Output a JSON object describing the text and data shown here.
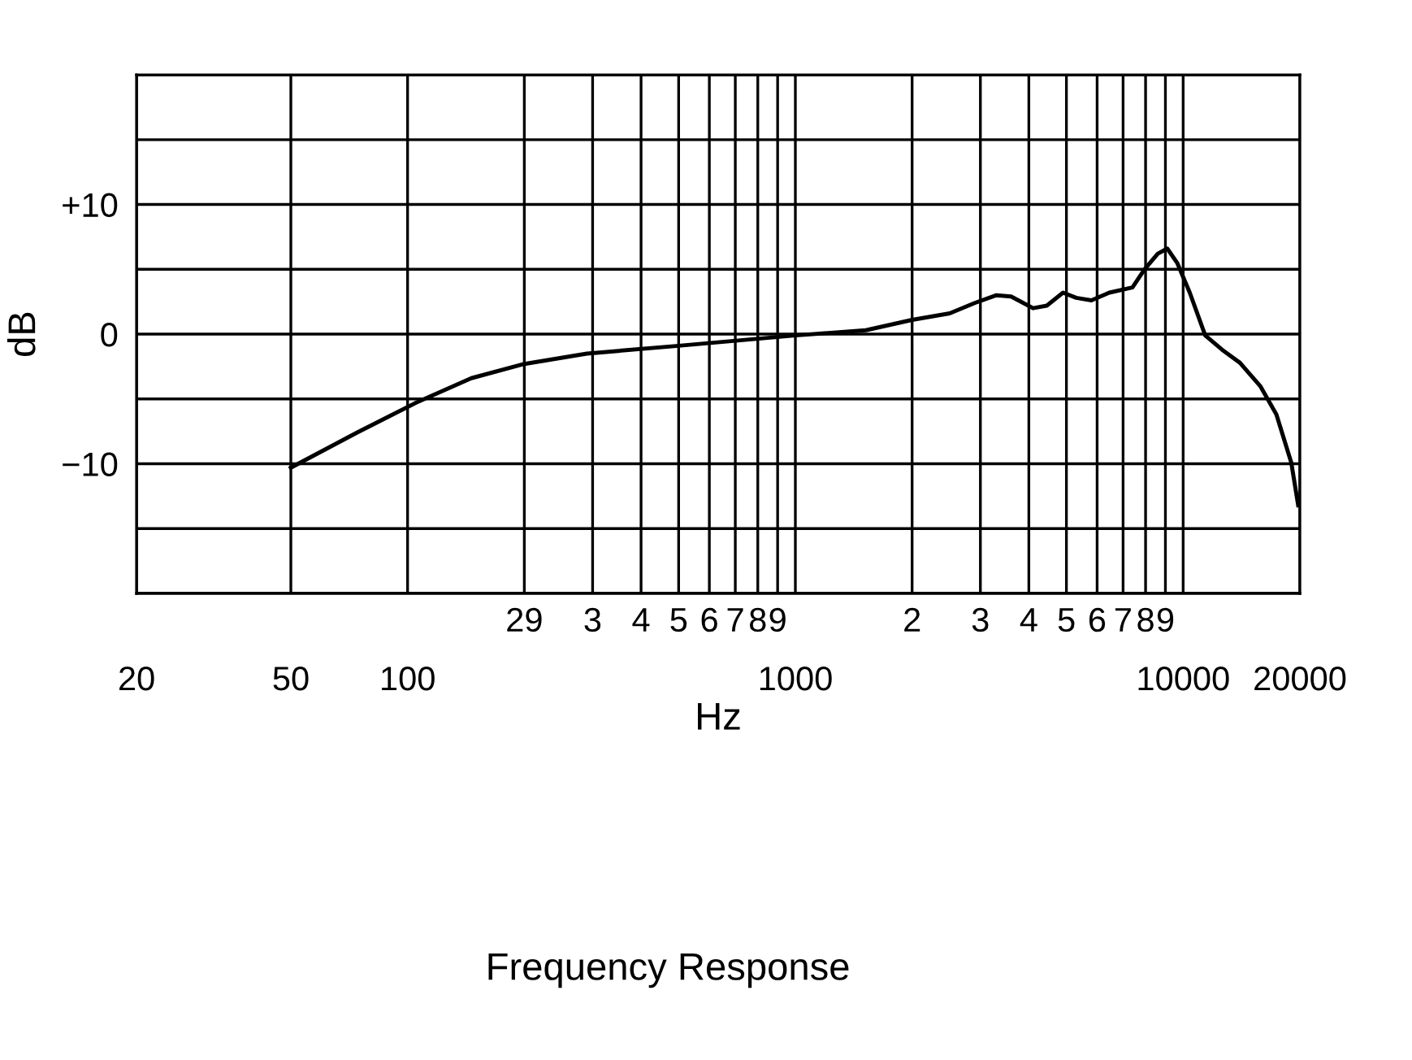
{
  "chart_data": {
    "type": "line",
    "xlabel": "Hz",
    "ylabel": "dB",
    "log": "x",
    "grid": true,
    "xlim": [
      20,
      20000
    ],
    "ylim": [
      -20,
      20
    ],
    "xticks": [
      20,
      50,
      100,
      {
        "value": 200,
        "label": null
      },
      {
        "value": 300,
        "label": null
      },
      {
        "value": 400,
        "label": null
      },
      {
        "value": 500,
        "label": null
      },
      {
        "value": 600,
        "label": null
      },
      {
        "value": 700,
        "label": null
      },
      {
        "value": 800,
        "label": null
      },
      {
        "value": 900,
        "label": null
      },
      1000,
      {
        "value": 2000,
        "label": null
      },
      {
        "value": 3000,
        "label": null
      },
      {
        "value": 4000,
        "label": null
      },
      {
        "value": 5000,
        "label": null
      },
      {
        "value": 6000,
        "label": null
      },
      {
        "value": 7000,
        "label": null
      },
      {
        "value": 8000,
        "label": null
      },
      {
        "value": 9000,
        "label": null
      },
      10000,
      20000
    ],
    "yticks": [
      {
        "value": -20,
        "label": null
      },
      {
        "value": -15,
        "label": null
      },
      {
        "value": -10,
        "label": "−10"
      },
      {
        "value": -5,
        "label": null
      },
      0,
      {
        "value": 5,
        "label": null
      },
      {
        "value": 10,
        "label": "+10"
      },
      {
        "value": 15,
        "label": null
      },
      {
        "value": 20,
        "label": null
      }
    ],
    "series": [
      {
        "color": "#000000",
        "x": [
          50,
          74,
          105,
          146,
          200,
          290,
          500,
          1000,
          1520,
          2000,
          2500,
          2900,
          3300,
          3600,
          4100,
          4450,
          4900,
          5300,
          5800,
          6450,
          7400,
          7950,
          8600,
          9100,
          9650,
          10400,
          11400,
          12600,
          14000,
          15800,
          17400,
          19000,
          19800
        ],
        "values": [
          -10.3,
          -7.6,
          -5.3,
          -3.4,
          -2.3,
          -1.5,
          -0.9,
          -0.1,
          0.3,
          1.1,
          1.6,
          2.4,
          3.0,
          2.9,
          2.0,
          2.2,
          3.2,
          2.8,
          2.6,
          3.2,
          3.6,
          5.0,
          6.2,
          6.6,
          5.5,
          3.2,
          -0.1,
          -1.2,
          -2.2,
          -4.0,
          -6.2,
          -9.9,
          -13.2
        ]
      }
    ],
    "annotations": [
      "29",
      "3",
      "4",
      "5",
      "6",
      "7",
      "8",
      "9",
      "2",
      "3",
      "4",
      "5",
      "6",
      "7",
      "8",
      "9",
      "Frequency Response"
    ]
  }
}
